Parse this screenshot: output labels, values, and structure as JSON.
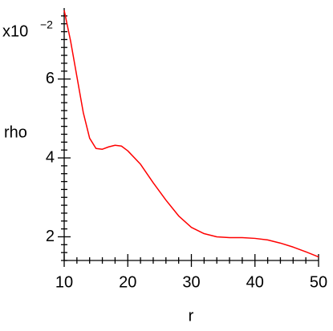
{
  "chart_data": {
    "type": "line",
    "x_label": "r",
    "y_label": "rho",
    "y_multiplier": "x10",
    "y_multiplier_exponent": "−2",
    "x": [
      10,
      11,
      12,
      13,
      14,
      15,
      16,
      17,
      18,
      19,
      20,
      22,
      24,
      26,
      28,
      30,
      32,
      34,
      36,
      38,
      40,
      42,
      44,
      46,
      48,
      50
    ],
    "series": [
      {
        "color": "#ff0000",
        "values": [
          7.74,
          6.97,
          6.06,
          5.15,
          4.5,
          4.24,
          4.22,
          4.28,
          4.32,
          4.3,
          4.18,
          3.84,
          3.37,
          2.93,
          2.53,
          2.24,
          2.08,
          2.0,
          1.98,
          1.98,
          1.96,
          1.92,
          1.84,
          1.74,
          1.62,
          1.49
        ]
      }
    ],
    "xlim": [
      10,
      50
    ],
    "ylim": [
      1.4,
      7.8
    ],
    "xticks": [
      10,
      20,
      30,
      40,
      50
    ],
    "yticks": [
      2,
      4,
      6
    ],
    "xminor_ticks": [
      12,
      14,
      16,
      18,
      22,
      24,
      26,
      28,
      32,
      34,
      36,
      38,
      42,
      44,
      46,
      48
    ],
    "yminor_ticks": [
      1.4,
      1.6,
      1.8,
      2.2,
      2.4,
      2.6,
      2.8,
      3,
      3.2,
      3.4,
      3.6,
      3.8,
      4.2,
      4.4,
      4.6,
      4.8,
      5,
      5.2,
      5.4,
      5.6,
      5.8,
      6.2,
      6.4,
      6.6,
      6.8,
      7,
      7.2,
      7.4,
      7.6
    ],
    "grid": false
  }
}
